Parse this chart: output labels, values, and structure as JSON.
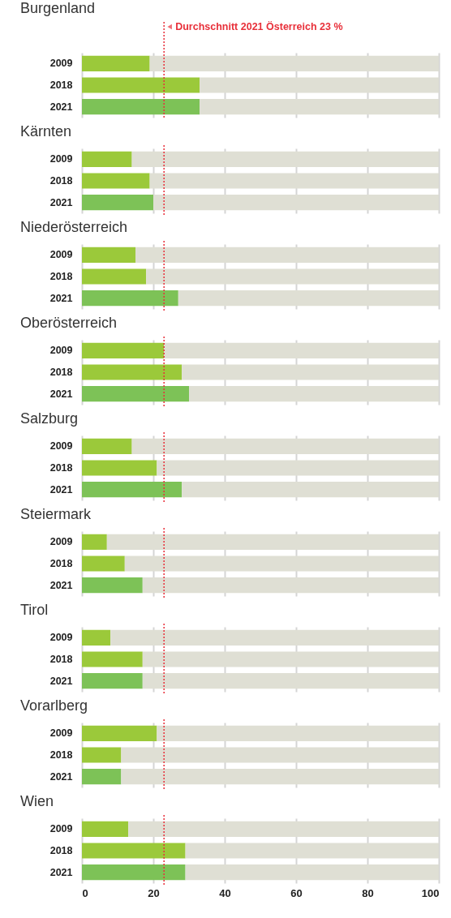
{
  "chart_data": [
    {
      "type": "bar",
      "orientation": "horizontal",
      "stacked": true,
      "title": "Burgenland",
      "categories": [
        "2009",
        "2018",
        "2021"
      ],
      "series": [
        {
          "colors": [
            "#9bc93a",
            "#9bc93a",
            "#7dc257"
          ],
          "values": [
            19,
            33,
            33
          ]
        },
        {
          "color": "#dfdfd4",
          "values": [
            81,
            67,
            67
          ]
        }
      ],
      "xlim": [
        0,
        100
      ],
      "xticks": [
        0,
        20,
        40,
        60,
        80,
        100
      ],
      "grid": "x",
      "tick_labels": "y",
      "ref_lines": [
        {
          "axis": "x",
          "value": 23,
          "label": "Durchschnitt 2021 Österreich 23 %",
          "color": "#e8303a",
          "line_style": "dotted"
        }
      ]
    },
    {
      "type": "bar",
      "orientation": "horizontal",
      "stacked": true,
      "title": "Kärnten",
      "categories": [
        "2009",
        "2018",
        "2021"
      ],
      "series": [
        {
          "colors": [
            "#9bc93a",
            "#9bc93a",
            "#7dc257"
          ],
          "values": [
            14,
            19,
            20
          ]
        },
        {
          "color": "#dfdfd4",
          "values": [
            86,
            81,
            80
          ]
        }
      ],
      "xlim": [
        0,
        100
      ],
      "xticks": [
        0,
        20,
        40,
        60,
        80,
        100
      ],
      "grid": "x",
      "tick_labels": "y",
      "ref_lines": [
        {
          "axis": "x",
          "value": 23,
          "color": "#e8303a",
          "line_style": "dotted"
        }
      ]
    },
    {
      "type": "bar",
      "orientation": "horizontal",
      "stacked": true,
      "title": "Niederösterreich",
      "categories": [
        "2009",
        "2018",
        "2021"
      ],
      "series": [
        {
          "colors": [
            "#9bc93a",
            "#9bc93a",
            "#7dc257"
          ],
          "values": [
            15,
            18,
            27
          ]
        },
        {
          "color": "#dfdfd4",
          "values": [
            85,
            82,
            73
          ]
        }
      ],
      "xlim": [
        0,
        100
      ],
      "xticks": [
        0,
        20,
        40,
        60,
        80,
        100
      ],
      "grid": "x",
      "tick_labels": "y",
      "ref_lines": [
        {
          "axis": "x",
          "value": 23,
          "color": "#e8303a",
          "line_style": "dotted"
        }
      ]
    },
    {
      "type": "bar",
      "orientation": "horizontal",
      "stacked": true,
      "title": "Oberösterreich",
      "categories": [
        "2009",
        "2018",
        "2021"
      ],
      "series": [
        {
          "colors": [
            "#9bc93a",
            "#9bc93a",
            "#7dc257"
          ],
          "values": [
            23,
            28,
            30
          ]
        },
        {
          "color": "#dfdfd4",
          "values": [
            77,
            72,
            70
          ]
        }
      ],
      "xlim": [
        0,
        100
      ],
      "xticks": [
        0,
        20,
        40,
        60,
        80,
        100
      ],
      "grid": "x",
      "tick_labels": "y",
      "ref_lines": [
        {
          "axis": "x",
          "value": 23,
          "color": "#e8303a",
          "line_style": "dotted"
        }
      ]
    },
    {
      "type": "bar",
      "orientation": "horizontal",
      "stacked": true,
      "title": "Salzburg",
      "categories": [
        "2009",
        "2018",
        "2021"
      ],
      "series": [
        {
          "colors": [
            "#9bc93a",
            "#9bc93a",
            "#7dc257"
          ],
          "values": [
            14,
            21,
            28
          ]
        },
        {
          "color": "#dfdfd4",
          "values": [
            86,
            79,
            72
          ]
        }
      ],
      "xlim": [
        0,
        100
      ],
      "xticks": [
        0,
        20,
        40,
        60,
        80,
        100
      ],
      "grid": "x",
      "tick_labels": "y",
      "ref_lines": [
        {
          "axis": "x",
          "value": 23,
          "color": "#e8303a",
          "line_style": "dotted"
        }
      ]
    },
    {
      "type": "bar",
      "orientation": "horizontal",
      "stacked": true,
      "title": "Steiermark",
      "categories": [
        "2009",
        "2018",
        "2021"
      ],
      "series": [
        {
          "colors": [
            "#9bc93a",
            "#9bc93a",
            "#7dc257"
          ],
          "values": [
            7,
            12,
            17
          ]
        },
        {
          "color": "#dfdfd4",
          "values": [
            93,
            88,
            83
          ]
        }
      ],
      "xlim": [
        0,
        100
      ],
      "xticks": [
        0,
        20,
        40,
        60,
        80,
        100
      ],
      "grid": "x",
      "tick_labels": "y",
      "ref_lines": [
        {
          "axis": "x",
          "value": 23,
          "color": "#e8303a",
          "line_style": "dotted"
        }
      ]
    },
    {
      "type": "bar",
      "orientation": "horizontal",
      "stacked": true,
      "title": "Tirol",
      "categories": [
        "2009",
        "2018",
        "2021"
      ],
      "series": [
        {
          "colors": [
            "#9bc93a",
            "#9bc93a",
            "#7dc257"
          ],
          "values": [
            8,
            17,
            17
          ]
        },
        {
          "color": "#dfdfd4",
          "values": [
            92,
            83,
            83
          ]
        }
      ],
      "xlim": [
        0,
        100
      ],
      "xticks": [
        0,
        20,
        40,
        60,
        80,
        100
      ],
      "grid": "x",
      "tick_labels": "y",
      "ref_lines": [
        {
          "axis": "x",
          "value": 23,
          "color": "#e8303a",
          "line_style": "dotted"
        }
      ]
    },
    {
      "type": "bar",
      "orientation": "horizontal",
      "stacked": true,
      "title": "Vorarlberg",
      "categories": [
        "2009",
        "2018",
        "2021"
      ],
      "series": [
        {
          "colors": [
            "#9bc93a",
            "#9bc93a",
            "#7dc257"
          ],
          "values": [
            21,
            11,
            11
          ]
        },
        {
          "color": "#dfdfd4",
          "values": [
            79,
            89,
            89
          ]
        }
      ],
      "xlim": [
        0,
        100
      ],
      "xticks": [
        0,
        20,
        40,
        60,
        80,
        100
      ],
      "grid": "x",
      "tick_labels": "y",
      "ref_lines": [
        {
          "axis": "x",
          "value": 23,
          "color": "#e8303a",
          "line_style": "dotted"
        }
      ]
    },
    {
      "type": "bar",
      "orientation": "horizontal",
      "stacked": true,
      "title": "Wien",
      "categories": [
        "2009",
        "2018",
        "2021"
      ],
      "series": [
        {
          "colors": [
            "#9bc93a",
            "#9bc93a",
            "#7dc257"
          ],
          "values": [
            13,
            29,
            29
          ]
        },
        {
          "color": "#dfdfd4",
          "values": [
            87,
            71,
            71
          ]
        }
      ],
      "xlim": [
        0,
        100
      ],
      "xticks": [
        0,
        20,
        40,
        60,
        80,
        100
      ],
      "grid": "x",
      "ref_lines": [
        {
          "axis": "x",
          "value": 23,
          "color": "#e8303a",
          "line_style": "dotted"
        }
      ]
    }
  ]
}
